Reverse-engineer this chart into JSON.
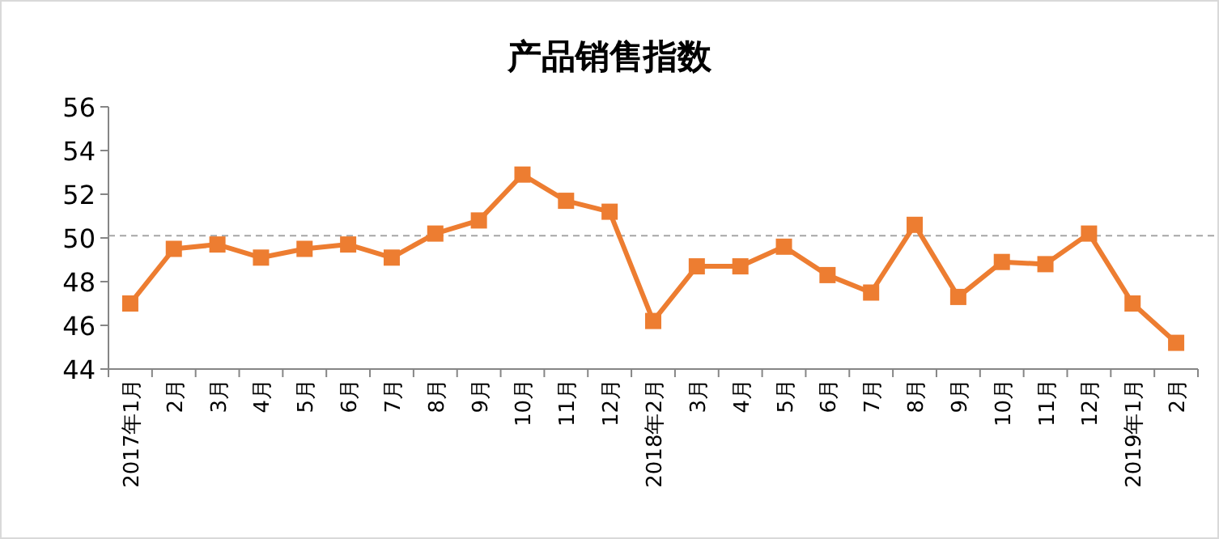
{
  "chart_data": {
    "type": "line",
    "title": "产品销售指数",
    "categories": [
      "2017年1月",
      "2月",
      "3月",
      "4月",
      "5月",
      "6月",
      "7月",
      "8月",
      "9月",
      "10月",
      "11月",
      "12月",
      "2018年2月",
      "3月",
      "4月",
      "5月",
      "6月",
      "7月",
      "8月",
      "9月",
      "10月",
      "11月",
      "12月",
      "2019年1月",
      "2月"
    ],
    "series": [
      {
        "color": "#ed7d31",
        "values": [
          47.0,
          49.5,
          49.7,
          49.1,
          49.5,
          49.7,
          49.1,
          50.2,
          50.8,
          52.9,
          51.7,
          51.2,
          46.2,
          48.7,
          48.7,
          49.6,
          48.3,
          47.5,
          50.6,
          47.3,
          48.9,
          48.8,
          50.2,
          47.0,
          45.2
        ]
      }
    ],
    "ylim": [
      44,
      56
    ],
    "yticks": [
      44,
      46,
      48,
      50,
      52,
      54,
      56
    ],
    "ref_lines": [
      {
        "axis": "y",
        "value": 50.1,
        "color": "#a6a6a6",
        "line_style": "dashed"
      }
    ],
    "marker": "square"
  }
}
